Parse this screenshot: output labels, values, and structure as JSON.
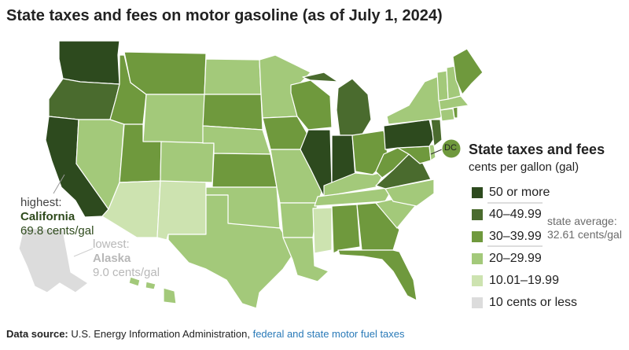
{
  "title": "State taxes and fees on motor gasoline (as of July 1, 2024)",
  "legend": {
    "title": "State taxes and fees",
    "subtitle": "cents per gallon (gal)",
    "items": [
      {
        "label": "50 or more",
        "color": "#2d4a1e"
      },
      {
        "label": "40–49.99",
        "color": "#4a6b2e"
      },
      {
        "label": "30–39.99",
        "color": "#6f993d"
      },
      {
        "label": "20–29.99",
        "color": "#a3c97a"
      },
      {
        "label": "10.01–19.99",
        "color": "#cde3b0"
      },
      {
        "label": "10 cents or less",
        "color": "#dcdcdc"
      }
    ]
  },
  "average": {
    "label": "state average:",
    "value": "32.61 cents/gal"
  },
  "highest": {
    "label": "highest:",
    "state": "California",
    "value": "69.8 cents/gal"
  },
  "lowest": {
    "label": "lowest:",
    "state": "Alaska",
    "value": "9.0 cents/gal"
  },
  "dc_label": "DC",
  "source": {
    "label": "Data source:",
    "text": " U.S. Energy Information Administration, ",
    "link": "federal and state motor fuel taxes"
  },
  "states": [
    {
      "name": "Washington",
      "category": 0
    },
    {
      "name": "Oregon",
      "category": 1
    },
    {
      "name": "California",
      "category": 0
    },
    {
      "name": "Nevada",
      "category": 3
    },
    {
      "name": "Idaho",
      "category": 2
    },
    {
      "name": "Montana",
      "category": 2
    },
    {
      "name": "Wyoming",
      "category": 3
    },
    {
      "name": "Utah",
      "category": 2
    },
    {
      "name": "Arizona",
      "category": 4
    },
    {
      "name": "New Mexico",
      "category": 4
    },
    {
      "name": "Colorado",
      "category": 3
    },
    {
      "name": "North Dakota",
      "category": 3
    },
    {
      "name": "South Dakota",
      "category": 2
    },
    {
      "name": "Nebraska",
      "category": 3
    },
    {
      "name": "Kansas",
      "category": 2
    },
    {
      "name": "Oklahoma",
      "category": 3
    },
    {
      "name": "Texas",
      "category": 3
    },
    {
      "name": "Minnesota",
      "category": 3
    },
    {
      "name": "Iowa",
      "category": 2
    },
    {
      "name": "Missouri",
      "category": 3
    },
    {
      "name": "Arkansas",
      "category": 3
    },
    {
      "name": "Louisiana",
      "category": 3
    },
    {
      "name": "Wisconsin",
      "category": 2
    },
    {
      "name": "Illinois",
      "category": 0
    },
    {
      "name": "Michigan",
      "category": 1
    },
    {
      "name": "Indiana",
      "category": 0
    },
    {
      "name": "Ohio",
      "category": 2
    },
    {
      "name": "Kentucky",
      "category": 3
    },
    {
      "name": "Tennessee",
      "category": 3
    },
    {
      "name": "Mississippi",
      "category": 4
    },
    {
      "name": "Alabama",
      "category": 2
    },
    {
      "name": "Georgia",
      "category": 2
    },
    {
      "name": "Florida",
      "category": 2
    },
    {
      "name": "South Carolina",
      "category": 3
    },
    {
      "name": "North Carolina",
      "category": 3
    },
    {
      "name": "Virginia",
      "category": 1
    },
    {
      "name": "West Virginia",
      "category": 2
    },
    {
      "name": "Maryland",
      "category": 2
    },
    {
      "name": "Delaware",
      "category": 3
    },
    {
      "name": "Pennsylvania",
      "category": 0
    },
    {
      "name": "New Jersey",
      "category": 1
    },
    {
      "name": "New York",
      "category": 3
    },
    {
      "name": "Connecticut",
      "category": 3
    },
    {
      "name": "Rhode Island",
      "category": 2
    },
    {
      "name": "Massachusetts",
      "category": 3
    },
    {
      "name": "Vermont",
      "category": 3
    },
    {
      "name": "New Hampshire",
      "category": 3
    },
    {
      "name": "Maine",
      "category": 2
    },
    {
      "name": "District of Columbia",
      "category": 2
    },
    {
      "name": "Hawaii",
      "category": 3
    },
    {
      "name": "Alaska",
      "category": 5
    }
  ]
}
